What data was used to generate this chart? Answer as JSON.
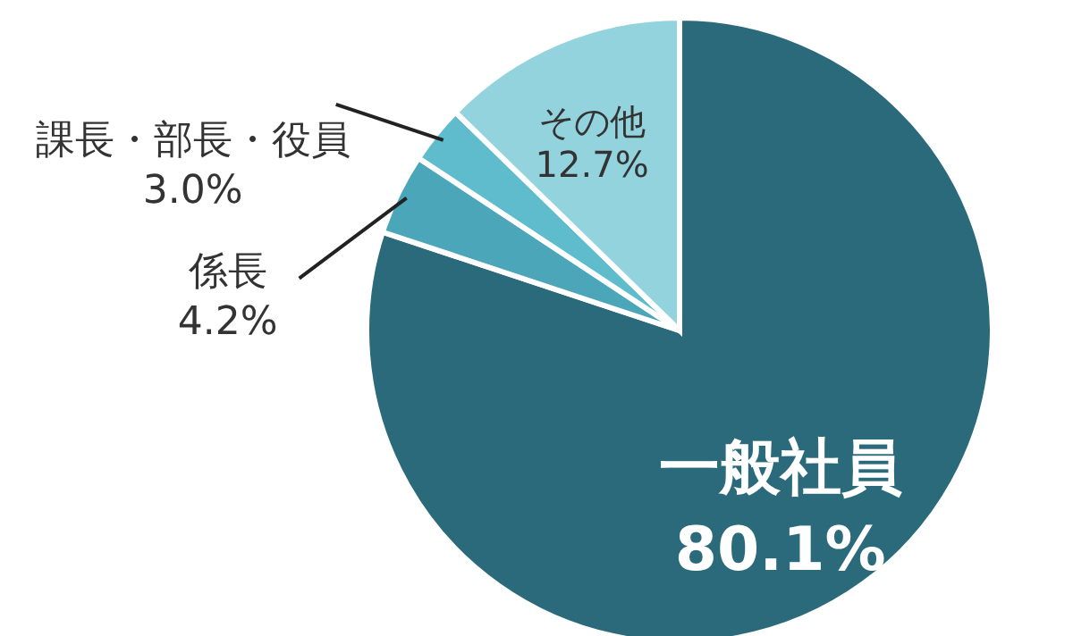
{
  "chart_data": {
    "type": "pie",
    "categories": [
      "一般社員",
      "係長",
      "課長・部長・役員",
      "その他"
    ],
    "values": [
      80.1,
      4.2,
      3.0,
      12.7
    ],
    "value_labels": [
      "80.1%",
      "4.2%",
      "3.0%",
      "12.7%"
    ],
    "colors": [
      "#2b6a7b",
      "#4aa6b8",
      "#5ebccc",
      "#93d3de"
    ]
  }
}
